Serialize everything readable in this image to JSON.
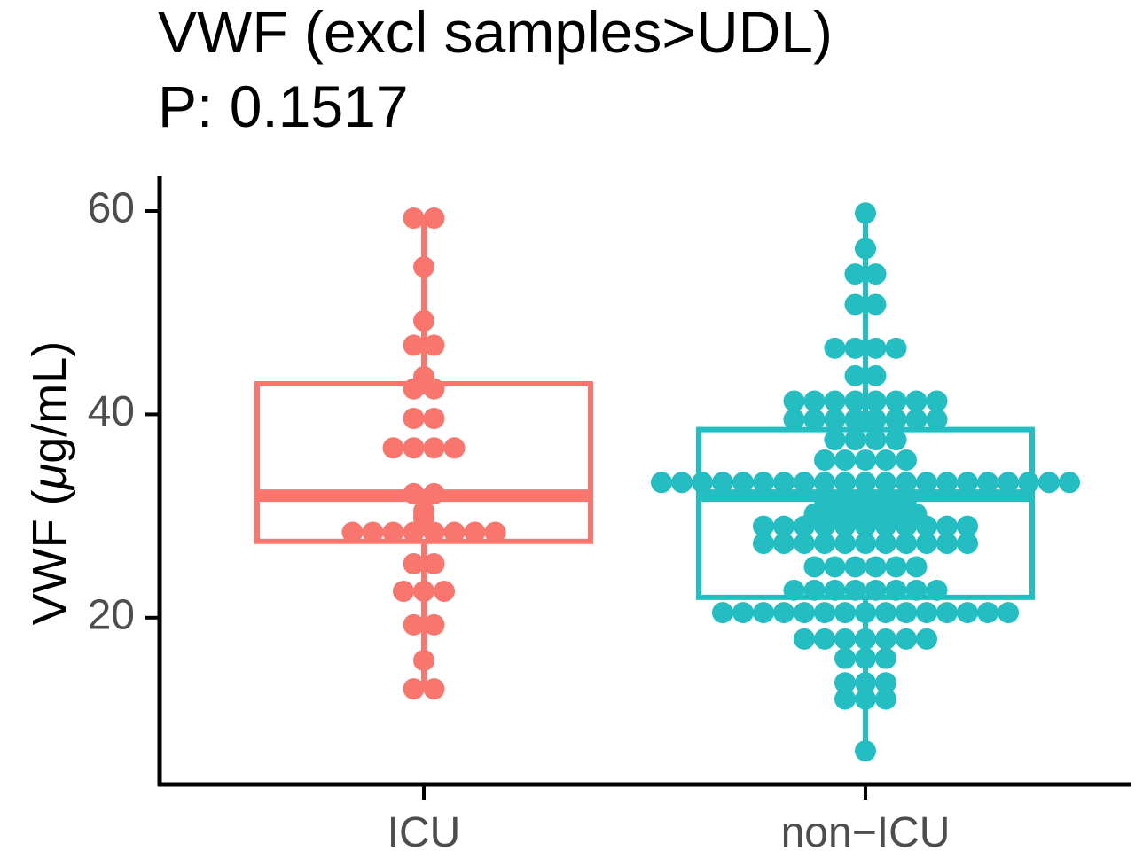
{
  "chart_data": {
    "type": "box",
    "title": "VWF (excl samples>UDL)",
    "subtitle": "P: 0.1517",
    "xlabel": "",
    "ylabel": "VWF (μg/mL)",
    "ylabel_unit_symbol": "μg/mL",
    "categories": [
      "ICU",
      "non−ICU"
    ],
    "ylim": [
      5,
      63
    ],
    "y_ticks": [
      20,
      40,
      60
    ],
    "grid": false,
    "legend": "none",
    "colors": {
      "ICU": "#F8766D",
      "non−ICU": "#23BDC2",
      "axis": "#000000",
      "tick_label": "#4D4D4D"
    },
    "series": [
      {
        "name": "ICU",
        "box": {
          "q1": 27.5,
          "median": 32.0,
          "q3": 43.0,
          "whisker_low": 13.0,
          "whisker_high": 59.3
        },
        "points": [
          59.3,
          59.3,
          54.5,
          49.2,
          46.8,
          46.8,
          43.7,
          43.0,
          42.5,
          42.5,
          39.6,
          39.6,
          36.7,
          36.7,
          36.7,
          36.7,
          32.2,
          32.2,
          30.5,
          30.0,
          29.8,
          28.4,
          28.4,
          28.4,
          28.4,
          28.4,
          28.4,
          28.4,
          28.4,
          25.3,
          25.3,
          22.6,
          22.6,
          22.6,
          19.3,
          19.3,
          15.8,
          13.0,
          13.0
        ]
      },
      {
        "name": "non−ICU",
        "box": {
          "q1": 22.0,
          "median": 32.0,
          "q3": 38.5,
          "whisker_low": 6.9,
          "whisker_high": 59.8
        },
        "points": [
          59.8,
          56.3,
          53.8,
          53.8,
          50.8,
          50.8,
          46.5,
          46.5,
          46.5,
          46.5,
          43.8,
          43.8,
          41.3,
          41.3,
          41.3,
          41.3,
          41.3,
          41.3,
          41.3,
          41.3,
          39.5,
          39.5,
          39.5,
          39.5,
          39.5,
          39.5,
          39.5,
          39.5,
          37.5,
          37.5,
          37.5,
          37.5,
          35.5,
          35.5,
          35.5,
          35.5,
          35.5,
          33.3,
          33.3,
          33.3,
          33.3,
          33.3,
          33.3,
          33.3,
          33.3,
          33.3,
          33.3,
          33.3,
          33.3,
          33.3,
          33.3,
          33.3,
          33.3,
          33.3,
          33.3,
          33.3,
          33.3,
          33.3,
          31.5,
          31.5,
          31.5,
          31.5,
          31.5,
          30.2,
          30.2,
          30.2,
          30.2,
          30.2,
          30.2,
          29.0,
          29.0,
          29.0,
          29.0,
          29.0,
          29.0,
          29.0,
          29.0,
          29.0,
          29.0,
          29.0,
          27.3,
          27.3,
          27.3,
          27.3,
          27.3,
          27.3,
          27.3,
          27.3,
          27.3,
          27.3,
          27.3,
          25.0,
          25.0,
          25.0,
          25.0,
          25.0,
          25.0,
          22.7,
          22.7,
          22.7,
          22.7,
          22.7,
          22.7,
          22.7,
          22.7,
          20.5,
          20.5,
          20.5,
          20.5,
          20.5,
          20.5,
          20.5,
          20.5,
          20.5,
          20.5,
          20.5,
          20.5,
          20.5,
          20.5,
          20.5,
          17.9,
          17.9,
          17.9,
          17.9,
          17.9,
          17.9,
          17.9,
          16.0,
          16.0,
          16.0,
          13.6,
          13.6,
          13.6,
          12.0,
          12.0,
          12.0,
          6.9
        ]
      }
    ]
  }
}
